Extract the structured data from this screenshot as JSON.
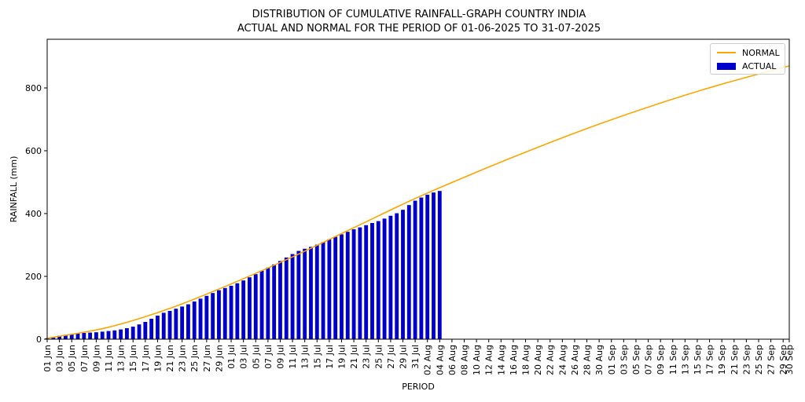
{
  "chart_data": {
    "type": "bar+line",
    "title": "DISTRIBUTION OF CUMULATIVE RAINFALL-GRAPH COUNTRY INDIA",
    "subtitle": "ACTUAL AND NORMAL FOR THE PERIOD OF 01-06-2025 TO 31-07-2025",
    "xlabel": "PERIOD",
    "ylabel": "RAINFALL (mm)",
    "ylim": [
      0,
      955
    ],
    "yticks": [
      0,
      200,
      400,
      600,
      800
    ],
    "x_tick_labels": [
      "01 Jun",
      "03 Jun",
      "05 Jun",
      "07 Jun",
      "09 Jun",
      "11 Jun",
      "13 Jun",
      "15 Jun",
      "17 Jun",
      "19 Jun",
      "21 Jun",
      "23 Jun",
      "25 Jun",
      "27 Jun",
      "29 Jun",
      "01 Jul",
      "03 Jul",
      "05 Jul",
      "07 Jul",
      "09 Jul",
      "11 Jul",
      "13 Jul",
      "15 Jul",
      "17 Jul",
      "19 Jul",
      "21 Jul",
      "23 Jul",
      "25 Jul",
      "27 Jul",
      "29 Jul",
      "31 Jul",
      "02 Aug",
      "04 Aug",
      "06 Aug",
      "08 Aug",
      "10 Aug",
      "12 Aug",
      "14 Aug",
      "16 Aug",
      "18 Aug",
      "20 Aug",
      "22 Aug",
      "24 Aug",
      "26 Aug",
      "28 Aug",
      "30 Aug",
      "01 Sep",
      "03 Sep",
      "05 Sep",
      "07 Sep",
      "09 Sep",
      "11 Sep",
      "13 Sep",
      "15 Sep",
      "17 Sep",
      "19 Sep",
      "21 Sep",
      "23 Sep",
      "25 Sep",
      "27 Sep",
      "29 Sep",
      "30 Sep"
    ],
    "x_tick_day_index": [
      0,
      2,
      4,
      6,
      8,
      10,
      12,
      14,
      16,
      18,
      20,
      22,
      24,
      26,
      28,
      30,
      32,
      34,
      36,
      38,
      40,
      42,
      44,
      46,
      48,
      50,
      52,
      54,
      56,
      58,
      60,
      62,
      64,
      66,
      68,
      70,
      72,
      74,
      76,
      78,
      80,
      82,
      84,
      86,
      88,
      90,
      92,
      94,
      96,
      98,
      100,
      102,
      104,
      106,
      108,
      110,
      112,
      114,
      116,
      118,
      120,
      121
    ],
    "days_total": 122,
    "legend_position": "top-right",
    "series": [
      {
        "name": "NORMAL",
        "kind": "line",
        "color": "#FFA500",
        "x_day_index": [
          0,
          10,
          20,
          30,
          40,
          50,
          60,
          70,
          80,
          90,
          100,
          110,
          121
        ],
        "values": [
          3,
          38,
          98,
          176,
          262,
          355,
          448,
          532,
          611,
          685,
          752,
          812,
          870
        ]
      },
      {
        "name": "ACTUAL",
        "kind": "bar",
        "color": "#0000CD",
        "values": [
          3,
          7,
          11,
          14,
          16,
          18,
          20,
          21,
          22,
          24,
          26,
          28,
          31,
          35,
          40,
          47,
          55,
          65,
          75,
          84,
          90,
          97,
          104,
          111,
          120,
          129,
          138,
          147,
          156,
          163,
          170,
          178,
          187,
          197,
          207,
          218,
          228,
          238,
          249,
          260,
          271,
          281,
          288,
          294,
          301,
          309,
          318,
          326,
          334,
          342,
          350,
          356,
          363,
          370,
          376,
          384,
          393,
          401,
          412,
          427,
          441,
          451,
          460,
          467,
          472
        ]
      }
    ],
    "legend": [
      "NORMAL",
      "ACTUAL"
    ]
  }
}
